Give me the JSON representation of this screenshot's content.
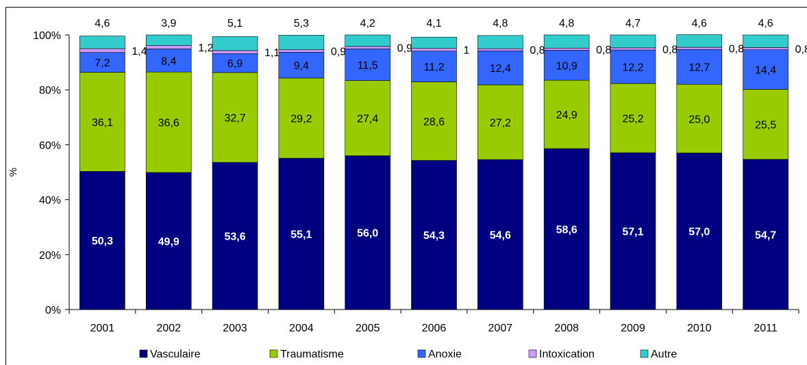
{
  "chart_data": {
    "type": "bar",
    "stacked": true,
    "ylabel": "%",
    "ylim": [
      0,
      100
    ],
    "yticks": [
      "0%",
      "20%",
      "40%",
      "60%",
      "80%",
      "100%"
    ],
    "categories": [
      "2001",
      "2002",
      "2003",
      "2004",
      "2005",
      "2006",
      "2007",
      "2008",
      "2009",
      "2010",
      "2011"
    ],
    "series": [
      {
        "name": "Vasculaire",
        "color": "#000080",
        "values": [
          50.3,
          49.9,
          53.6,
          55.1,
          56.0,
          54.3,
          54.6,
          58.6,
          57.1,
          57.0,
          54.7
        ],
        "labels": [
          "50,3",
          "49,9",
          "53,6",
          "55,1",
          "56,0",
          "54,3",
          "54,6",
          "58,6",
          "57,1",
          "57,0",
          "54,7"
        ]
      },
      {
        "name": "Traumatisme",
        "color": "#99CC00",
        "values": [
          36.1,
          36.6,
          32.7,
          29.2,
          27.4,
          28.6,
          27.2,
          24.9,
          25.2,
          25.0,
          25.5
        ],
        "labels": [
          "36,1",
          "36,6",
          "32,7",
          "29,2",
          "27,4",
          "28,6",
          "27,2",
          "24,9",
          "25,2",
          "25,0",
          "25,5"
        ]
      },
      {
        "name": "Anoxie",
        "color": "#3366FF",
        "values": [
          7.2,
          8.4,
          6.9,
          9.4,
          11.5,
          11.2,
          12.4,
          10.9,
          12.2,
          12.7,
          14.4
        ],
        "labels": [
          "7,2",
          "8,4",
          "6,9",
          "9,4",
          "11,5",
          "11,2",
          "12,4",
          "10,9",
          "12,2",
          "12,7",
          "14,4"
        ]
      },
      {
        "name": "Intoxication",
        "color": "#CC99FF",
        "values": [
          1.4,
          1.2,
          1.1,
          0.9,
          0.9,
          1.0,
          0.8,
          0.8,
          0.8,
          0.8,
          0.8
        ],
        "labels": [
          "1,4",
          "1,2",
          "1,1",
          "0,9",
          "0,9",
          "1",
          "0,8",
          "0,8",
          "0,8",
          "0,8",
          "0,8"
        ]
      },
      {
        "name": "Autre",
        "color": "#33CCCC",
        "values": [
          4.6,
          3.9,
          5.1,
          5.3,
          4.2,
          4.1,
          4.8,
          4.8,
          4.7,
          4.6,
          4.6
        ],
        "labels": [
          "4,6",
          "3,9",
          "5,1",
          "5,3",
          "4,2",
          "4,1",
          "4,8",
          "4,8",
          "4,7",
          "4,6",
          "4,6"
        ]
      }
    ],
    "legend_position": "bottom",
    "grid": false
  }
}
